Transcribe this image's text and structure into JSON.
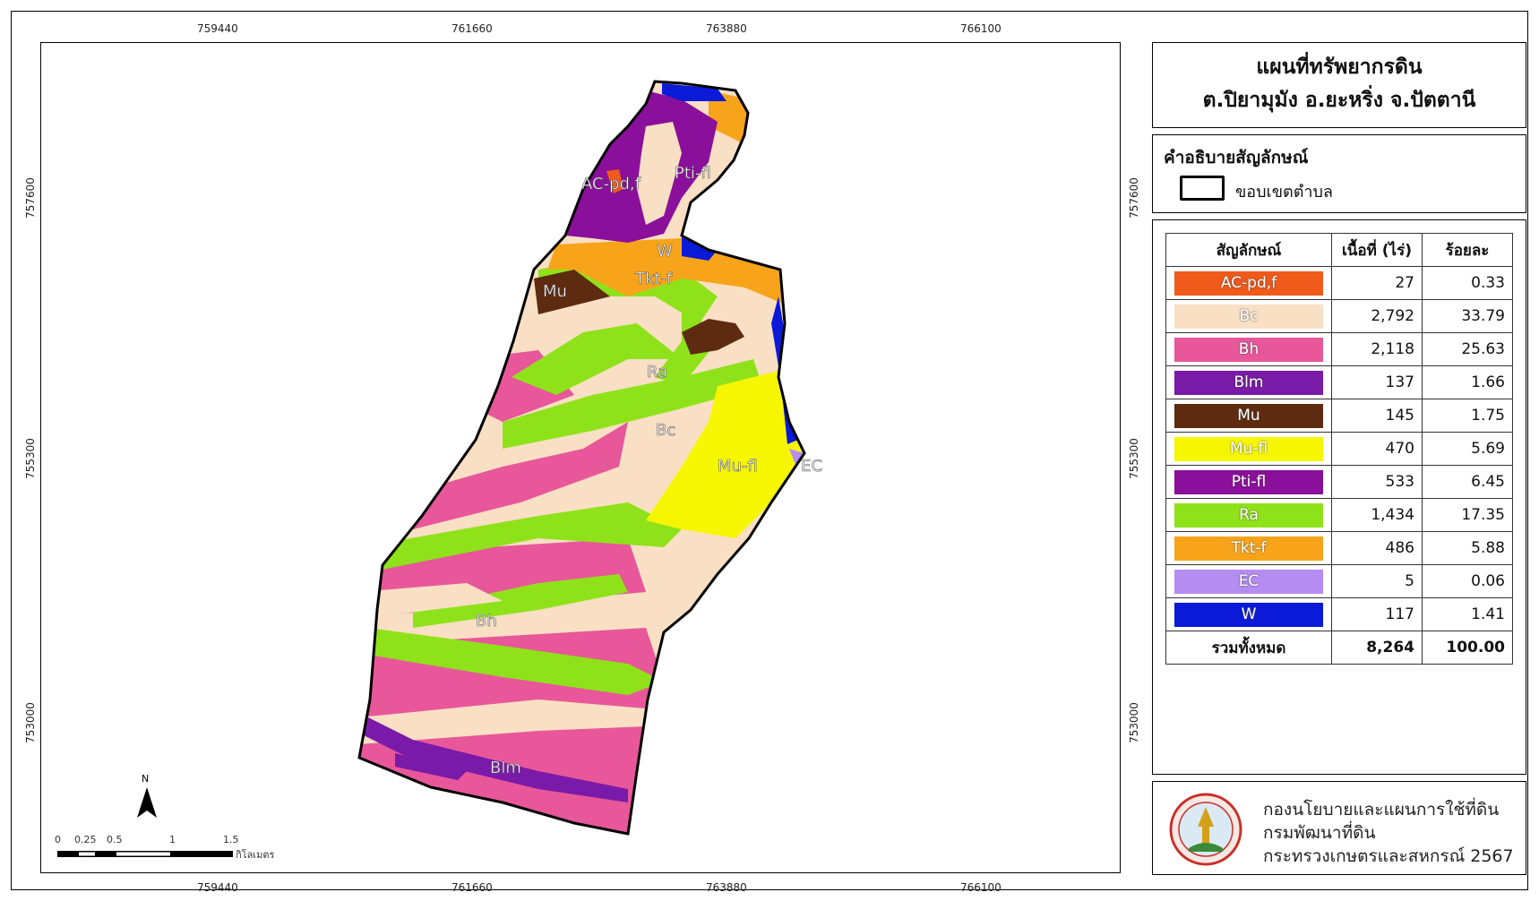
{
  "map": {
    "x_ticks": [
      "759440",
      "761660",
      "763880",
      "766100"
    ],
    "y_ticks": [
      "757600",
      "755300",
      "753000"
    ],
    "area_labels": {
      "ac": "AC-pd,f",
      "pti": "Pti-fl",
      "w": "W",
      "tkt": "Tkt-f",
      "mu": "Mu",
      "ra": "Ra",
      "bc": "Bc",
      "mufl": "Mu-fl",
      "ec": "EC",
      "bh": "Bh",
      "blm": "Blm"
    },
    "scale_bar": {
      "labels": [
        "0",
        "0.25",
        "0.5",
        "1",
        "1.5"
      ],
      "unit": "กิโลเมตร"
    },
    "north": "N"
  },
  "title": {
    "line1": "แผนที่ทรัพยากรดิน",
    "line2": "ต.ปิยามุมัง อ.ยะหริ่ง จ.ปัตตานี"
  },
  "legend": {
    "heading": "คำอธิบายสัญลักษณ์",
    "boundary_label": "ขอบเขตตำบล"
  },
  "soil_table": {
    "headers": [
      "สัญลักษณ์",
      "เนื้อที่ (ไร่)",
      "ร้อยละ"
    ],
    "rows": [
      {
        "symbol": "AC-pd,f",
        "area": "27",
        "percent": "0.33",
        "color": "#f05a1a"
      },
      {
        "symbol": "Bc",
        "area": "2,792",
        "percent": "33.79",
        "color": "#f9dfc3"
      },
      {
        "symbol": "Bh",
        "area": "2,118",
        "percent": "25.63",
        "color": "#e8579a"
      },
      {
        "symbol": "Blm",
        "area": "137",
        "percent": "1.66",
        "color": "#7a1aa8"
      },
      {
        "symbol": "Mu",
        "area": "145",
        "percent": "1.75",
        "color": "#5e2a10"
      },
      {
        "symbol": "Mu-fl",
        "area": "470",
        "percent": "5.69",
        "color": "#f6f600"
      },
      {
        "symbol": "Pti-fl",
        "area": "533",
        "percent": "6.45",
        "color": "#8a0f9a"
      },
      {
        "symbol": "Ra",
        "area": "1,434",
        "percent": "17.35",
        "color": "#8fe21a"
      },
      {
        "symbol": "Tkt-f",
        "area": "486",
        "percent": "5.88",
        "color": "#f7a41a"
      },
      {
        "symbol": "EC",
        "area": "5",
        "percent": "0.06",
        "color": "#b58cf2"
      },
      {
        "symbol": "W",
        "area": "117",
        "percent": "1.41",
        "color": "#0a1ad8"
      }
    ],
    "total": {
      "label": "รวมทั้งหมด",
      "area": "8,264",
      "percent": "100.00"
    }
  },
  "organization": {
    "line1": "กองนโยบายและแผนการใช้ที่ดิน",
    "line2": "กรมพัฒนาที่ดิน",
    "line3": "กระทรวงเกษตรและสหกรณ์ 2567"
  }
}
